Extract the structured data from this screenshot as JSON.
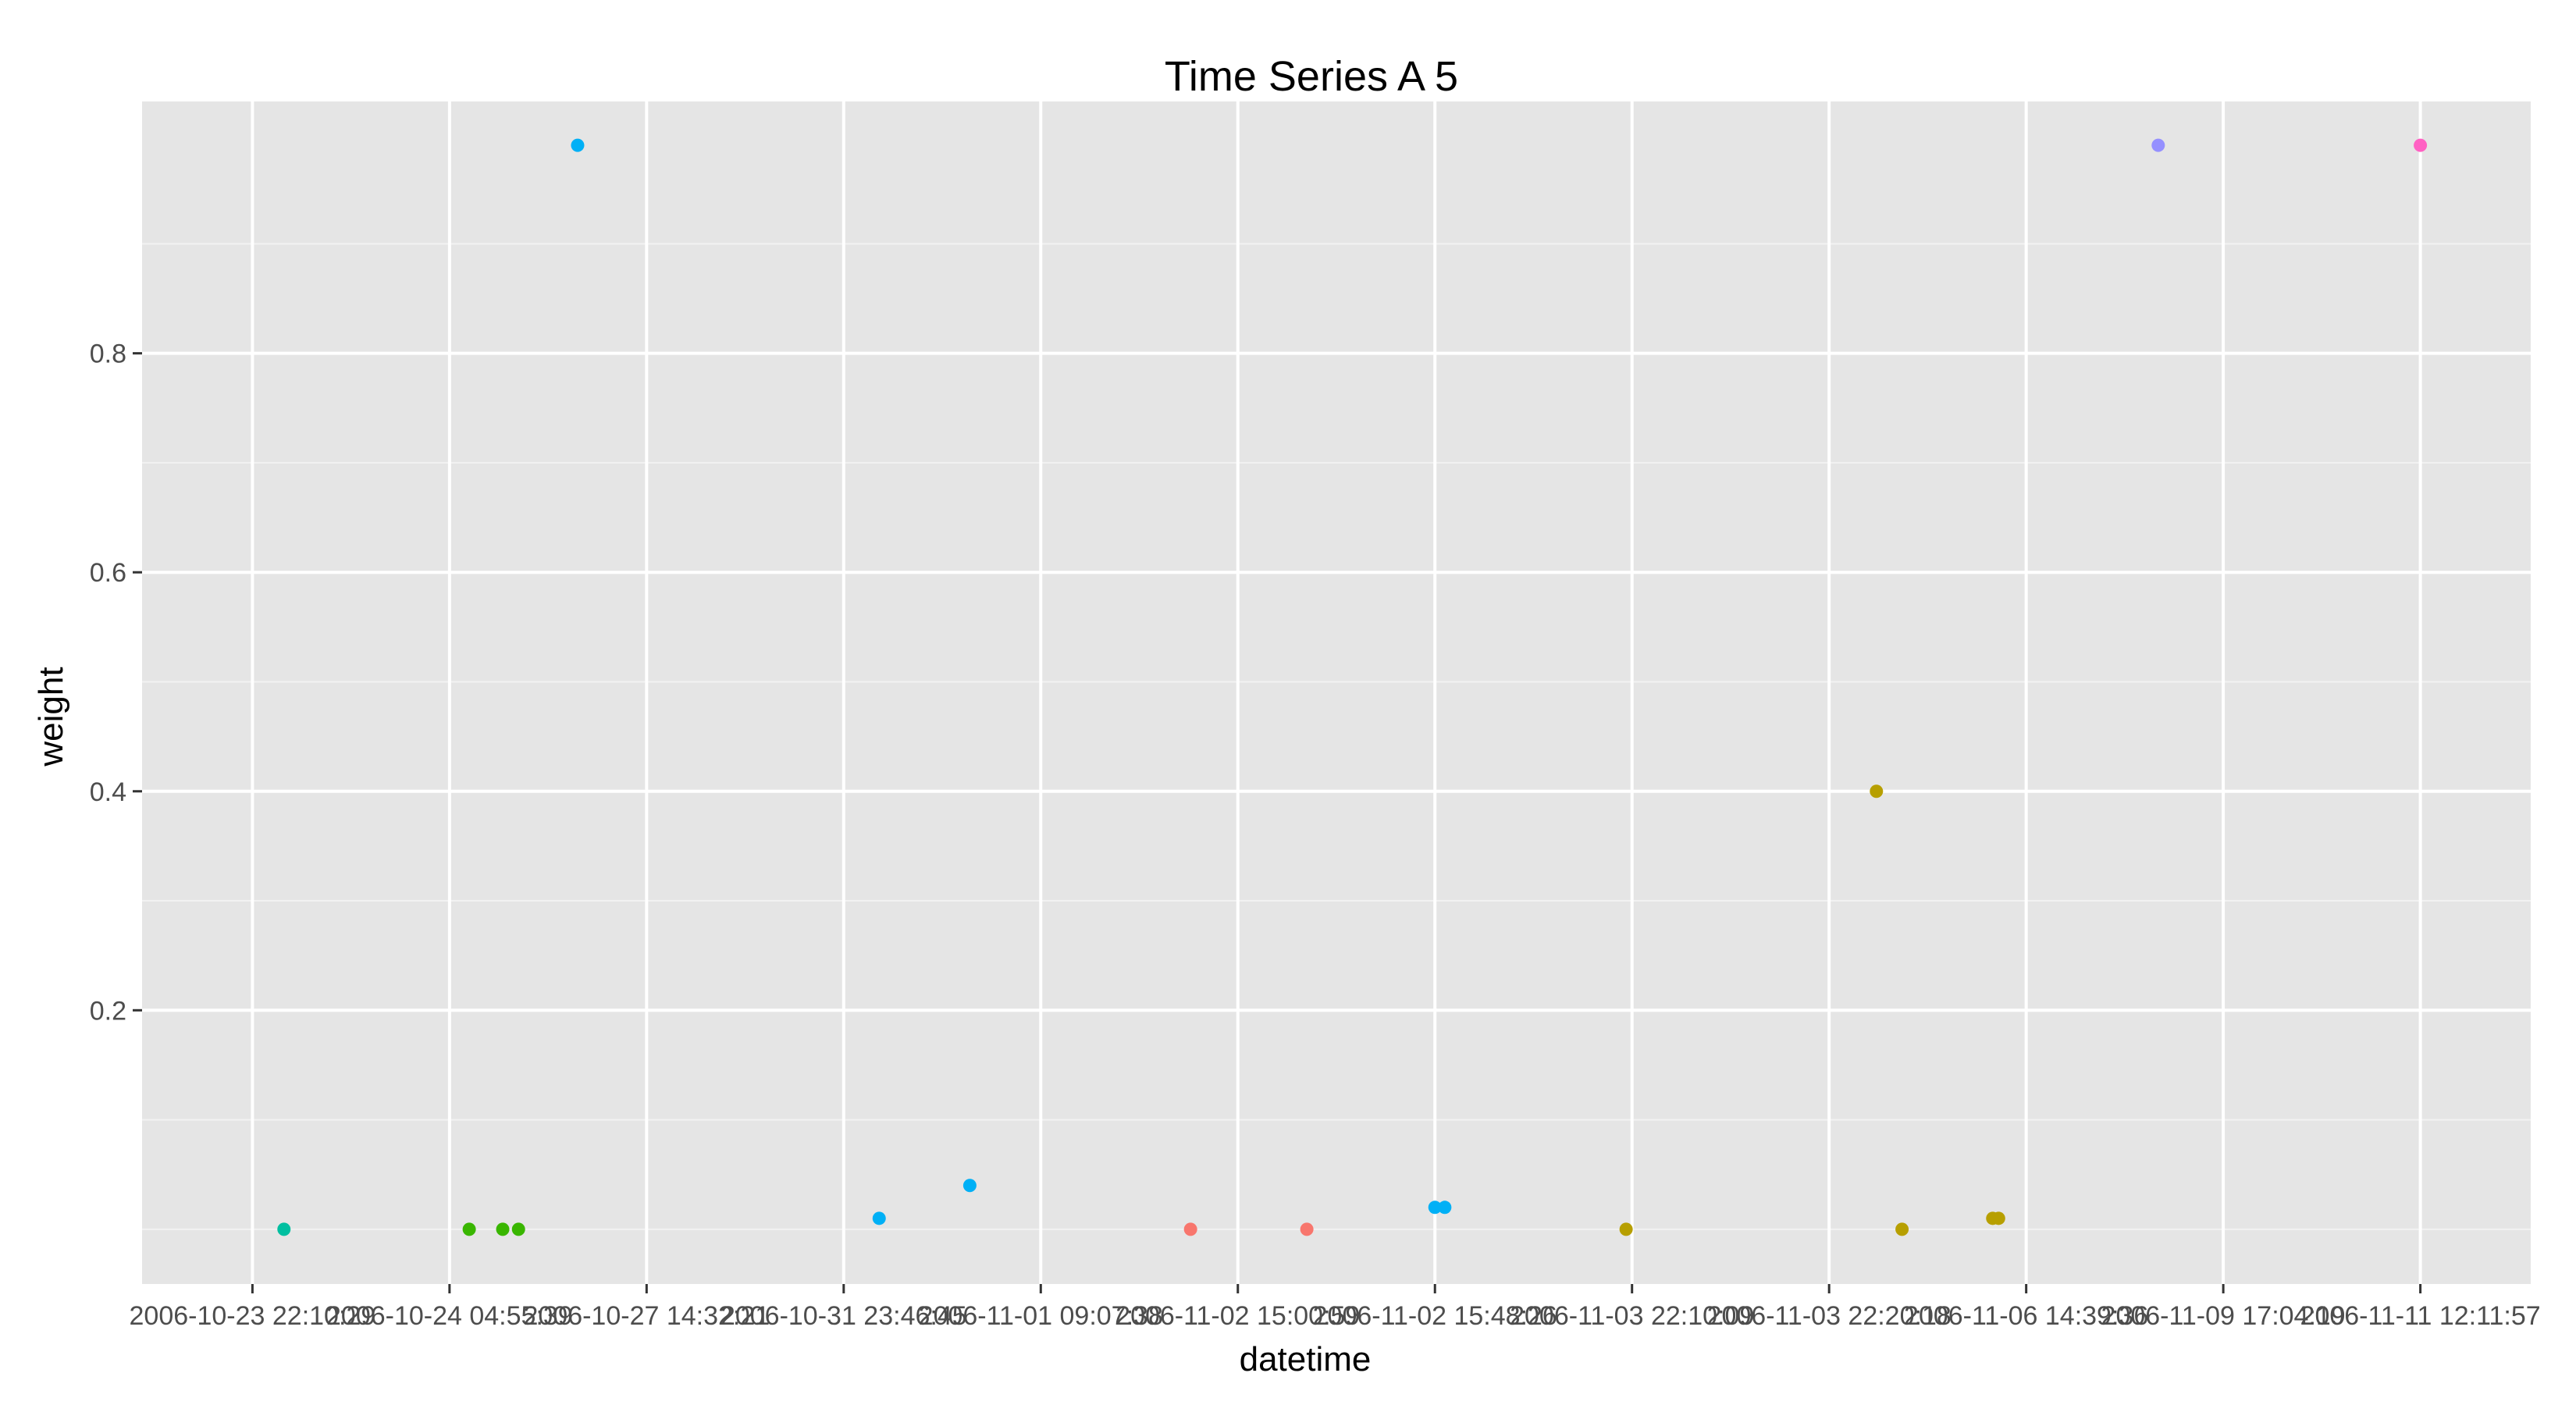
{
  "chart_data": {
    "type": "scatter",
    "title": "Time Series A 5",
    "xlabel": "datetime",
    "ylabel": "weight",
    "ylim": [
      -0.05,
      1.03
    ],
    "y_ticks": [
      0.2,
      0.4,
      0.6,
      0.8
    ],
    "x_ticks": [
      "2006-10-23 22:10:29",
      "2006-10-24 04:55:39",
      "2006-10-27 14:32:21",
      "2006-10-31 23:46:45",
      "2006-11-01 09:07:38",
      "2006-11-02 15:00:59",
      "2006-11-02 15:48:26",
      "2006-11-03 22:10:09",
      "2006-11-03 22:20:18",
      "2006-11-06 14:39:36",
      "2006-11-09 17:04:19",
      "2006-11-11 12:11:57"
    ],
    "x_tick_labels": [
      "2006-10-23 22:10:29",
      "2006-10-24 04:55:39",
      "2006-10-27 14:32:21",
      "2006-10-31 23:46:45",
      "2006-11-01 09:07:38",
      "2006-11-02 15:00:59",
      "2006-11-02 15:48:26",
      "2006-11-03 22:10:09",
      "2006-11-03 22:20:18",
      "2006-11-06 14:39:36",
      "2006-11-09 17:04:19",
      "2006-11-11 12:11:57"
    ],
    "grid": true,
    "points": [
      {
        "x": 0.16,
        "y": 0.0,
        "color": "#00BFA0"
      },
      {
        "x": 1.1,
        "y": 0.0,
        "color": "#39B600"
      },
      {
        "x": 1.27,
        "y": 0.0,
        "color": "#39B600"
      },
      {
        "x": 1.35,
        "y": 0.0,
        "color": "#39B600"
      },
      {
        "x": 1.65,
        "y": 0.99,
        "color": "#00B0F6"
      },
      {
        "x": 3.18,
        "y": 0.01,
        "color": "#00B0F6"
      },
      {
        "x": 3.64,
        "y": 0.04,
        "color": "#00B0F6"
      },
      {
        "x": 4.76,
        "y": 0.0,
        "color": "#F8766D"
      },
      {
        "x": 5.35,
        "y": 0.0,
        "color": "#F8766D"
      },
      {
        "x": 6.0,
        "y": 0.02,
        "color": "#00B0F6"
      },
      {
        "x": 6.05,
        "y": 0.02,
        "color": "#00B0F6"
      },
      {
        "x": 6.97,
        "y": 0.0,
        "color": "#B79F00"
      },
      {
        "x": 8.24,
        "y": 0.4,
        "color": "#B79F00"
      },
      {
        "x": 8.37,
        "y": 0.0,
        "color": "#B79F00"
      },
      {
        "x": 8.83,
        "y": 0.01,
        "color": "#B79F00"
      },
      {
        "x": 8.86,
        "y": 0.01,
        "color": "#B79F00"
      },
      {
        "x": 9.67,
        "y": 0.99,
        "color": "#9590FF"
      },
      {
        "x": 11.0,
        "y": 0.99,
        "color": "#FF61C3"
      }
    ]
  }
}
